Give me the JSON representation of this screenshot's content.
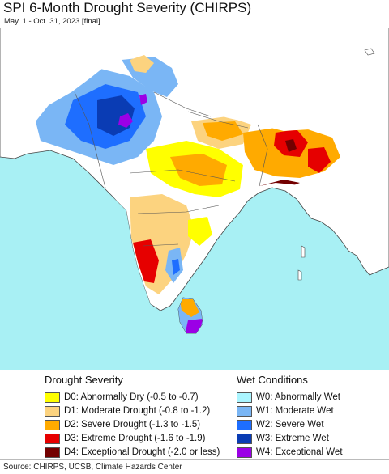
{
  "header": {
    "title": "SPI 6-Month Drought Severity (CHIRPS)",
    "subtitle": "May. 1 - Oct. 31, 2023 [final]"
  },
  "map": {
    "ocean_color": "#a8f0f4",
    "land_color": "#ffffff",
    "border_color": "#444444",
    "icon": "south-asia-drought-map"
  },
  "legend": {
    "drought": {
      "title": "Drought Severity",
      "items": [
        {
          "code": "D0",
          "label": "D0: Abnormally Dry (-0.5 to -0.7)",
          "color": "#ffff00"
        },
        {
          "code": "D1",
          "label": "D1: Moderate Drought (-0.8 to -1.2)",
          "color": "#fcd37f"
        },
        {
          "code": "D2",
          "label": "D2: Severe Drought (-1.3 to -1.5)",
          "color": "#ffaa00"
        },
        {
          "code": "D3",
          "label": "D3: Extreme Drought (-1.6 to -1.9)",
          "color": "#e60000"
        },
        {
          "code": "D4",
          "label": "D4: Exceptional Drought (-2.0 or less)",
          "color": "#730000"
        }
      ]
    },
    "wet": {
      "title": "Wet Conditions",
      "items": [
        {
          "code": "W0",
          "label": "W0: Abnormally Wet",
          "color": "#aaf5ff"
        },
        {
          "code": "W1",
          "label": "W1: Moderate Wet",
          "color": "#7ab6f5"
        },
        {
          "code": "W2",
          "label": "W2: Severe Wet",
          "color": "#1e6eff"
        },
        {
          "code": "W3",
          "label": "W3: Extreme Wet",
          "color": "#0a3cb4"
        },
        {
          "code": "W4",
          "label": "W4: Exceptional Wet",
          "color": "#9b00e6"
        }
      ]
    }
  },
  "footer": {
    "source": "Source: CHIRPS, UCSB, Climate Hazards Center"
  }
}
